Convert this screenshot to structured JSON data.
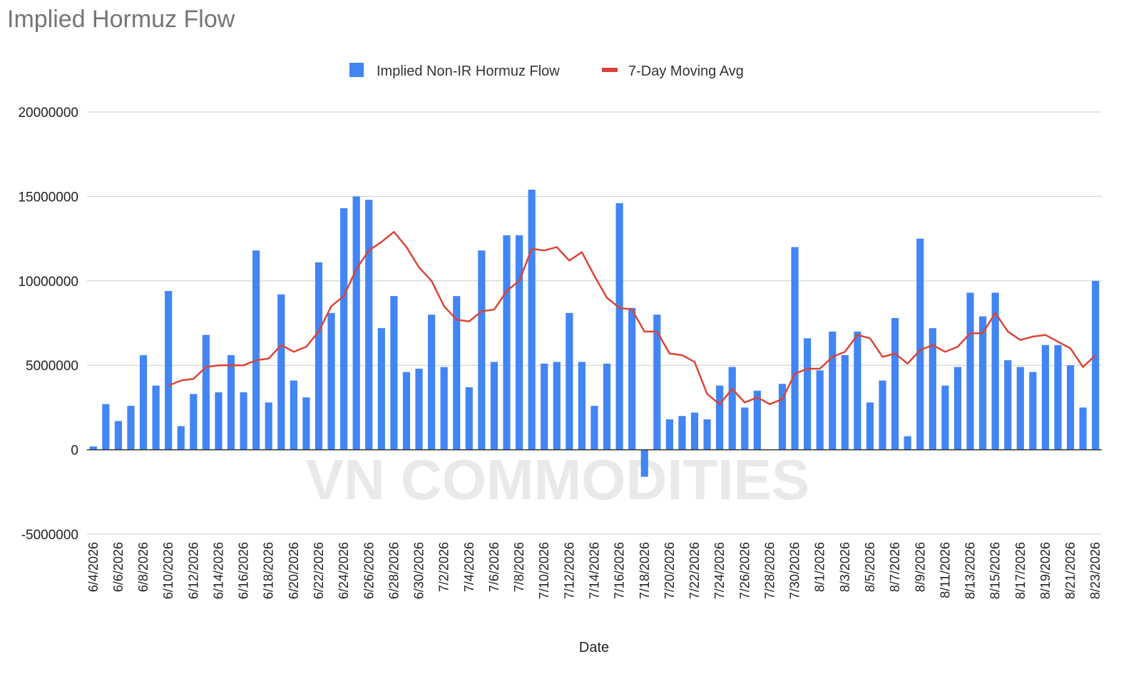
{
  "chart_data": {
    "type": "bar",
    "title": "Implied Hormuz Flow",
    "xlabel": "Date",
    "ylabel": "",
    "ylim": [
      -5000000,
      20000000
    ],
    "yticks": [
      20000000,
      15000000,
      10000000,
      5000000,
      0,
      -5000000
    ],
    "grid": true,
    "legend_position": "top-center",
    "watermark": "VN COMMODITIES",
    "categories": [
      "6/4/2026",
      "6/5/2026",
      "6/6/2026",
      "6/7/2026",
      "6/8/2026",
      "6/9/2026",
      "6/10/2026",
      "6/11/2026",
      "6/12/2026",
      "6/13/2026",
      "6/14/2026",
      "6/15/2026",
      "6/16/2026",
      "6/17/2026",
      "6/18/2026",
      "6/19/2026",
      "6/20/2026",
      "6/21/2026",
      "6/22/2026",
      "6/23/2026",
      "6/24/2026",
      "6/25/2026",
      "6/26/2026",
      "6/27/2026",
      "6/28/2026",
      "6/29/2026",
      "6/30/2026",
      "7/1/2026",
      "7/2/2026",
      "7/3/2026",
      "7/4/2026",
      "7/5/2026",
      "7/6/2026",
      "7/7/2026",
      "7/8/2026",
      "7/9/2026",
      "7/10/2026",
      "7/11/2026",
      "7/12/2026",
      "7/13/2026",
      "7/14/2026",
      "7/15/2026",
      "7/16/2026",
      "7/17/2026",
      "7/18/2026",
      "7/19/2026",
      "7/20/2026",
      "7/21/2026",
      "7/22/2026",
      "7/23/2026",
      "7/24/2026",
      "7/25/2026",
      "7/26/2026",
      "7/27/2026",
      "7/28/2026",
      "7/29/2026",
      "7/30/2026",
      "7/31/2026",
      "8/1/2026",
      "8/2/2026",
      "8/3/2026",
      "8/4/2026",
      "8/5/2026",
      "8/6/2026",
      "8/7/2026",
      "8/8/2026",
      "8/9/2026",
      "8/10/2026",
      "8/11/2026",
      "8/12/2026",
      "8/13/2026",
      "8/14/2026",
      "8/15/2026",
      "8/16/2026",
      "8/17/2026",
      "8/18/2026",
      "8/19/2026",
      "8/20/2026",
      "8/21/2026",
      "8/22/2026",
      "8/23/2026"
    ],
    "tick_labels": [
      "6/4/2026",
      "6/6/2026",
      "6/8/2026",
      "6/10/2026",
      "6/12/2026",
      "6/14/2026",
      "6/16/2026",
      "6/18/2026",
      "6/20/2026",
      "6/22/2026",
      "6/24/2026",
      "6/26/2026",
      "6/28/2026",
      "6/30/2026",
      "7/2/2026",
      "7/4/2026",
      "7/6/2026",
      "7/8/2026",
      "7/10/2026",
      "7/12/2026",
      "7/14/2026",
      "7/16/2026",
      "7/18/2026",
      "7/20/2026",
      "7/22/2026",
      "7/24/2026",
      "7/26/2026",
      "7/28/2026",
      "7/30/2026",
      "8/1/2026",
      "8/3/2026",
      "8/5/2026",
      "8/7/2026",
      "8/9/2026",
      "8/11/2026",
      "8/13/2026",
      "8/15/2026",
      "8/17/2026",
      "8/19/2026",
      "8/21/2026",
      "8/23/2026"
    ],
    "series": [
      {
        "name": "Implied Non-IR Hormuz Flow",
        "type": "bar",
        "color": "#4285f4",
        "values": [
          200000,
          2700000,
          1700000,
          2600000,
          5600000,
          3800000,
          9400000,
          1400000,
          3300000,
          6800000,
          3400000,
          5600000,
          3400000,
          11800000,
          2800000,
          9200000,
          4100000,
          3100000,
          11100000,
          8100000,
          14300000,
          15000000,
          14800000,
          7200000,
          9100000,
          4600000,
          4800000,
          8000000,
          4900000,
          9100000,
          3700000,
          11800000,
          5200000,
          12700000,
          12700000,
          15400000,
          5100000,
          5200000,
          8100000,
          5200000,
          2600000,
          5100000,
          14600000,
          8400000,
          -1600000,
          8000000,
          1800000,
          2000000,
          2200000,
          1800000,
          3800000,
          4900000,
          2500000,
          3500000,
          0,
          3900000,
          12000000,
          6600000,
          4700000,
          7000000,
          5600000,
          7000000,
          2800000,
          4100000,
          7800000,
          800000,
          12500000,
          7200000,
          3800000,
          4900000,
          9300000,
          7900000,
          9300000,
          5300000,
          4900000,
          4600000,
          6200000,
          6200000,
          5000000,
          2500000,
          10000000
        ]
      },
      {
        "name": "7-Day Moving Avg",
        "type": "line",
        "color": "#db4437",
        "values": [
          null,
          null,
          null,
          null,
          null,
          null,
          3800000,
          4100000,
          4200000,
          4900000,
          5000000,
          5000000,
          5000000,
          5300000,
          5400000,
          6200000,
          5800000,
          6100000,
          7000000,
          8500000,
          9100000,
          10700000,
          11800000,
          12300000,
          12900000,
          12000000,
          10800000,
          10000000,
          8500000,
          7700000,
          7600000,
          8200000,
          8300000,
          9400000,
          10000000,
          11900000,
          11800000,
          12000000,
          11200000,
          11700000,
          10300000,
          9000000,
          8400000,
          8300000,
          7000000,
          7000000,
          5700000,
          5600000,
          5200000,
          3300000,
          2700000,
          3600000,
          2800000,
          3100000,
          2700000,
          3000000,
          4500000,
          4800000,
          4800000,
          5500000,
          5800000,
          6800000,
          6600000,
          5500000,
          5700000,
          5100000,
          5900000,
          6200000,
          5800000,
          6100000,
          6900000,
          6900000,
          8100000,
          7000000,
          6500000,
          6700000,
          6800000,
          6400000,
          6000000,
          4900000,
          5600000
        ]
      }
    ]
  }
}
